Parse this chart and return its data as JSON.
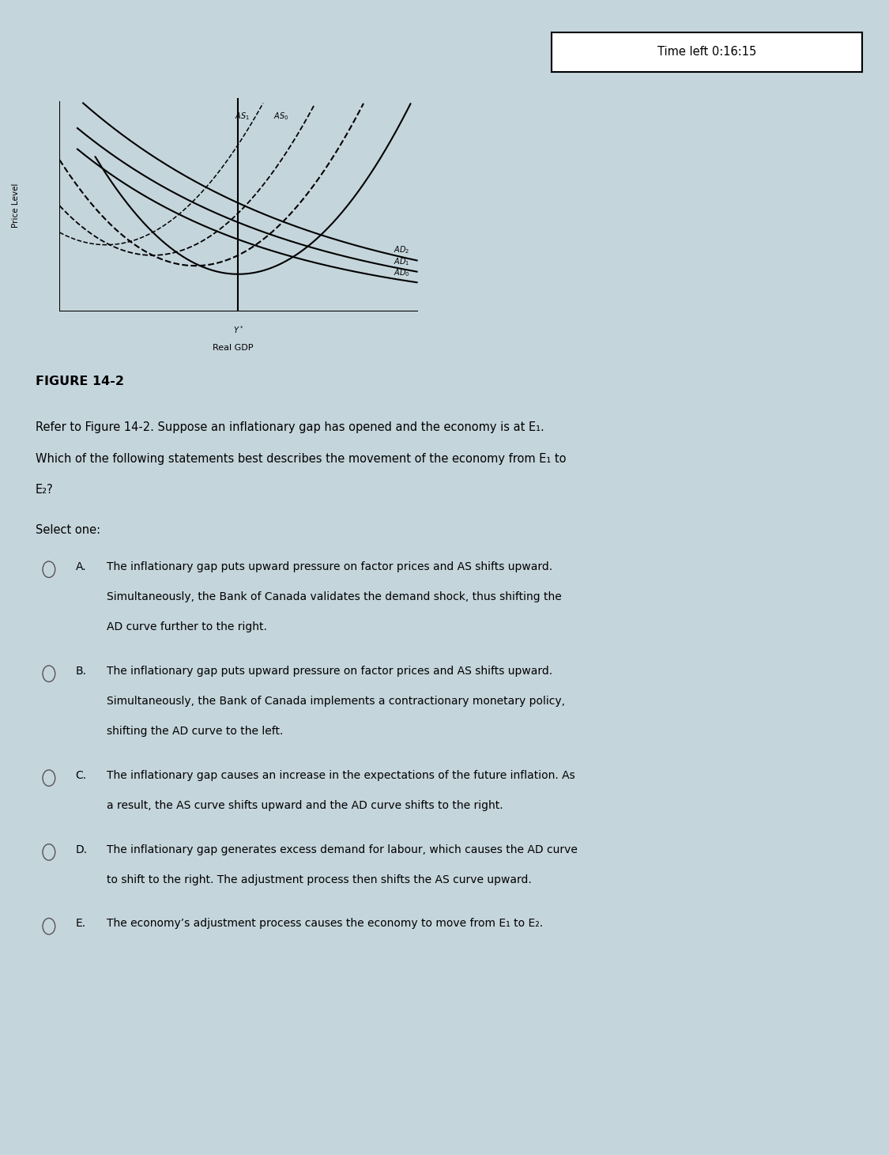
{
  "bg_top": "#1a5fad",
  "bg_body": "#c5d5dc",
  "chart_outer_bg": "#e8eef2",
  "chart_inner_bg": "#dce8ee",
  "fig_title": "FIGURE 14-2",
  "timer_text": "Time left 0:16:15",
  "question_text1": "Refer to Figure 14-2. Suppose an inflationary gap has opened and the economy is at E₁.",
  "question_text2": "Which of the following statements best describes the movement of the economy from E₁ to",
  "question_text3": "E₂?",
  "select_text": "Select one:",
  "options": [
    {
      "label": "A.",
      "text1": "The inflationary gap puts upward pressure on factor prices and AS shifts upward.",
      "text2": "Simultaneously, the Bank of Canada validates the demand shock, thus shifting the",
      "text3": "AD curve further to the right."
    },
    {
      "label": "B.",
      "text1": "The inflationary gap puts upward pressure on factor prices and AS shifts upward.",
      "text2": "Simultaneously, the Bank of Canada implements a contractionary monetary policy,",
      "text3": "shifting the AD curve to the left."
    },
    {
      "label": "C.",
      "text1": "The inflationary gap causes an increase in the expectations of the future inflation. As",
      "text2": "a result, the AS curve shifts upward and the AD curve shifts to the right.",
      "text3": ""
    },
    {
      "label": "D.",
      "text1": "The inflationary gap generates excess demand for labour, which causes the AD curve",
      "text2": "to shift to the right. The adjustment process then shifts the AS curve upward.",
      "text3": ""
    },
    {
      "label": "E.",
      "text1": "The economy’s adjustment process causes the economy to move from E₁ to E₂.",
      "text2": "",
      "text3": ""
    }
  ],
  "ylabel": "Price Level",
  "xlabel": "Real GDP",
  "x_star_label": "Y*"
}
